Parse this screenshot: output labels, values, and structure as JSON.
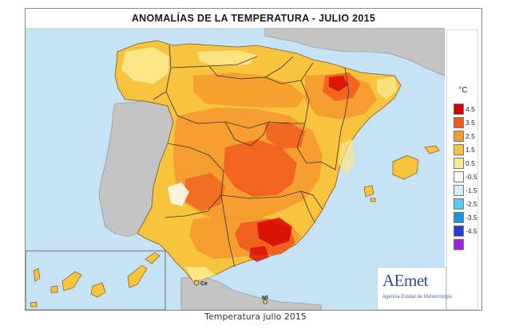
{
  "title": "ANOMALÍAS DE LA TEMPERATURA - JULIO  2015",
  "caption": "Temperatura julio 2015",
  "legend": {
    "unit": "°C",
    "classes": [
      {
        "label": "4.5",
        "color": "#d40000"
      },
      {
        "label": "3.5",
        "color": "#f05a1e"
      },
      {
        "label": "2.5",
        "color": "#f59a2d"
      },
      {
        "label": "1.5",
        "color": "#f8c43e"
      },
      {
        "label": "0.5",
        "color": "#fbe98d"
      },
      {
        "label": "-0.5",
        "color": "#fbfbf0"
      },
      {
        "label": "-1.5",
        "color": "#cfeef7"
      },
      {
        "label": "-2.5",
        "color": "#5bc6ee"
      },
      {
        "label": "-3.5",
        "color": "#1a93dd"
      },
      {
        "label": "-4.5",
        "color": "#2540d0"
      },
      {
        "label": "",
        "color": "#a020e8"
      }
    ]
  },
  "map_labels": {
    "ceuta": "Ce",
    "melilla": "Ml"
  },
  "logo": {
    "text": "AEmet",
    "subtitle": "Agencia Estatal de Meteorología"
  },
  "colors": {
    "sea": "#c6e2f5",
    "land_foreign": "#c4c4c4",
    "base_anomaly": "#f8c43e",
    "border_line": "#333333"
  }
}
